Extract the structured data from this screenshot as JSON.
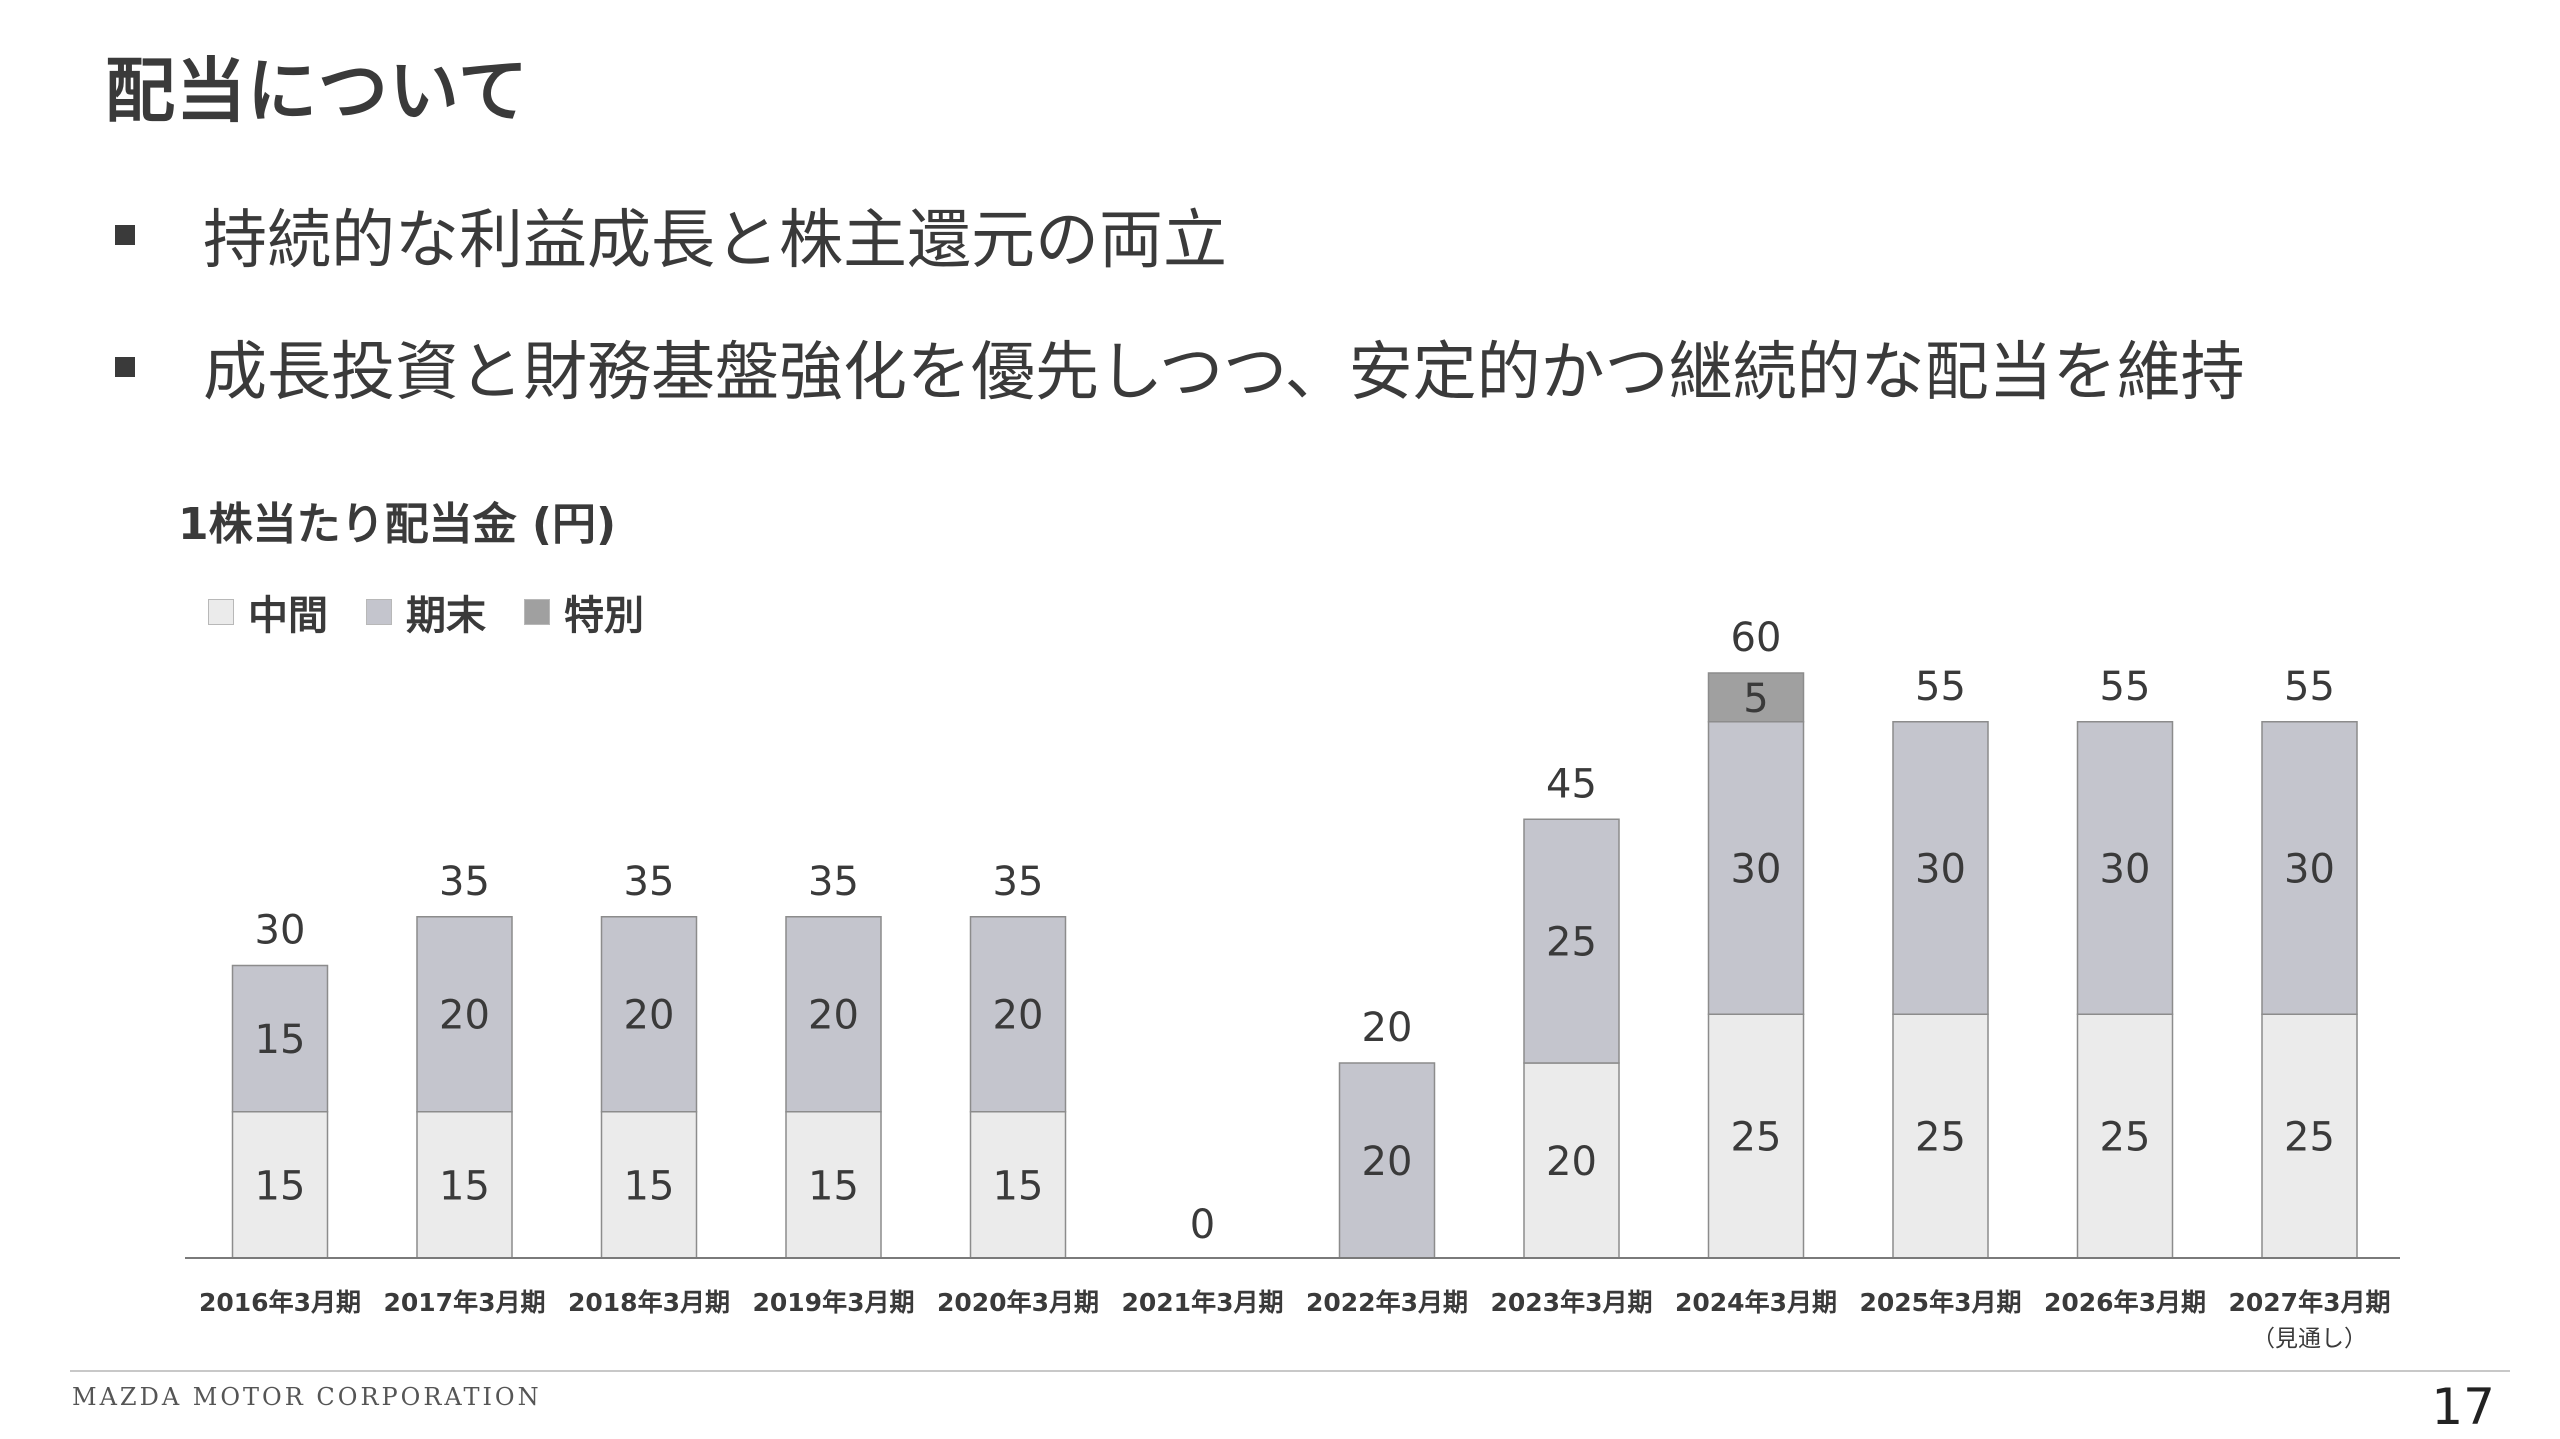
{
  "slide": {
    "title": "配当について",
    "bullets": [
      "持続的な利益成長と株主還元の両立",
      "成長投資と財務基盤強化を優先しつつ、安定的かつ継続的な配当を維持"
    ],
    "footer_company": "MAZDA MOTOR CORPORATION",
    "page_number": "17"
  },
  "chart_data": {
    "type": "bar",
    "stacked": true,
    "title": "1株当たり配当金 (円)",
    "categories": [
      "2016年3月期",
      "2017年3月期",
      "2018年3月期",
      "2019年3月期",
      "2020年3月期",
      "2021年3月期",
      "2022年3月期",
      "2023年3月期",
      "2024年3月期",
      "2025年3月期",
      "2026年3月期",
      "2027年3月期"
    ],
    "category_notes": [
      "",
      "",
      "",
      "",
      "",
      "",
      "",
      "",
      "",
      "",
      "",
      "（見通し）"
    ],
    "series": [
      {
        "name": "中間",
        "values": [
          15,
          15,
          15,
          15,
          15,
          0,
          0,
          20,
          25,
          25,
          25,
          25
        ],
        "color": "#ebebeb"
      },
      {
        "name": "期末",
        "values": [
          15,
          20,
          20,
          20,
          20,
          0,
          20,
          25,
          30,
          30,
          30,
          30
        ],
        "color": "#c4c5cd"
      },
      {
        "name": "特別",
        "values": [
          0,
          0,
          0,
          0,
          0,
          0,
          0,
          0,
          5,
          0,
          0,
          0
        ],
        "color": "#a0a0a0"
      }
    ],
    "totals": [
      30,
      35,
      35,
      35,
      35,
      0,
      20,
      45,
      60,
      55,
      55,
      55
    ],
    "ylim": [
      0,
      60
    ],
    "legend_position": "top-left",
    "grid": false
  }
}
